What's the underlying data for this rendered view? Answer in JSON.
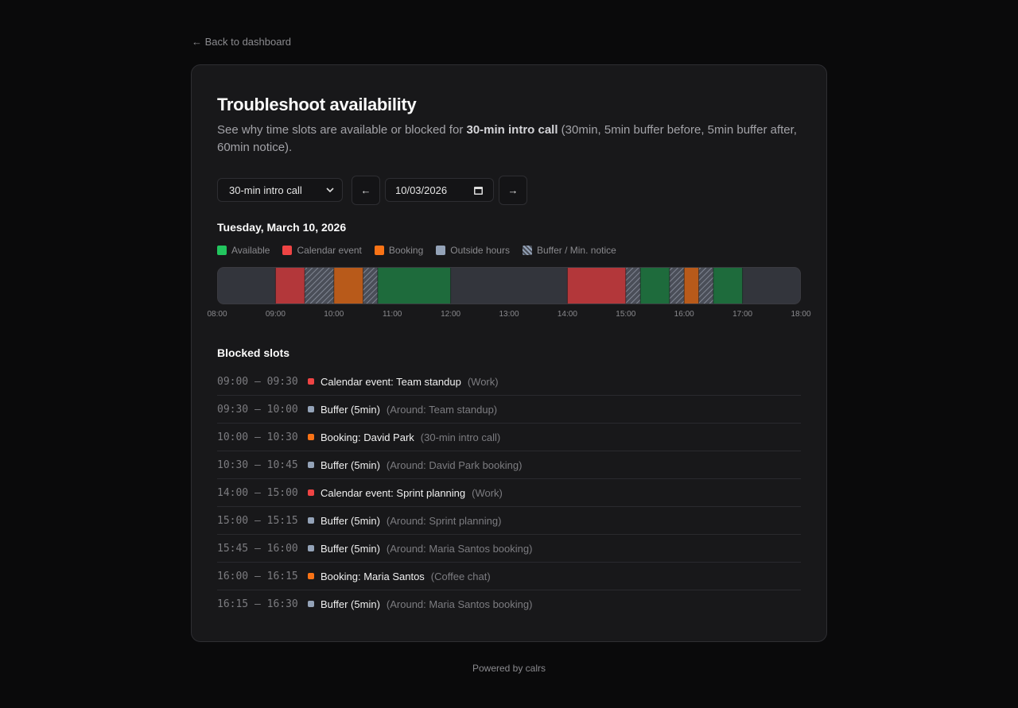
{
  "back_link": "← Back to dashboard",
  "title": "Troubleshoot availability",
  "description": {
    "before": "See why time slots are available or blocked for ",
    "bold": "30-min intro call",
    "after": " (30min, 5min buffer before, 5min buffer after, 60min notice)."
  },
  "controls": {
    "event_type": "30-min intro call",
    "prev": "←",
    "date": "10/03/2026",
    "next": "→"
  },
  "date_heading": "Tuesday, March 10, 2026",
  "legend": [
    {
      "label": "Available",
      "color": "#22c55e"
    },
    {
      "label": "Calendar event",
      "color": "#ef4444"
    },
    {
      "label": "Booking",
      "color": "#f97316"
    },
    {
      "label": "Outside hours",
      "color": "#94a3b8"
    },
    {
      "label": "Buffer / Min. notice",
      "color": "#94a3b8",
      "hatched": true
    }
  ],
  "timeline": {
    "range": [
      8,
      18
    ],
    "ticks": [
      "08:00",
      "09:00",
      "10:00",
      "11:00",
      "12:00",
      "13:00",
      "14:00",
      "15:00",
      "16:00",
      "17:00",
      "18:00"
    ],
    "segments": [
      {
        "start": 8,
        "end": 9,
        "color": "#33353c"
      },
      {
        "start": 9,
        "end": 9.5,
        "color": "#b3373a"
      },
      {
        "start": 9.5,
        "end": 10,
        "color": "#4a4e58",
        "hatched": true
      },
      {
        "start": 10,
        "end": 10.5,
        "color": "#b85a1a"
      },
      {
        "start": 10.5,
        "end": 10.75,
        "color": "#4a4e58",
        "hatched": true
      },
      {
        "start": 10.75,
        "end": 12,
        "color": "#1e6b3c"
      },
      {
        "start": 12,
        "end": 14,
        "color": "#33353c"
      },
      {
        "start": 14,
        "end": 15,
        "color": "#b3373a"
      },
      {
        "start": 15,
        "end": 15.25,
        "color": "#4a4e58",
        "hatched": true
      },
      {
        "start": 15.25,
        "end": 15.75,
        "color": "#1e6b3c"
      },
      {
        "start": 15.75,
        "end": 16,
        "color": "#4a4e58",
        "hatched": true
      },
      {
        "start": 16,
        "end": 16.25,
        "color": "#b85a1a"
      },
      {
        "start": 16.25,
        "end": 16.5,
        "color": "#4a4e58",
        "hatched": true
      },
      {
        "start": 16.5,
        "end": 17,
        "color": "#1e6b3c"
      },
      {
        "start": 17,
        "end": 18,
        "color": "#33353c"
      }
    ]
  },
  "blocked_heading": "Blocked slots",
  "slots": [
    {
      "time": "09:00 – 09:30",
      "color": "#ef4444",
      "title": "Calendar event: Team standup",
      "note": "(Work)"
    },
    {
      "time": "09:30 – 10:00",
      "color": "#94a3b8",
      "title": "Buffer (5min)",
      "note": "(Around: Team standup)"
    },
    {
      "time": "10:00 – 10:30",
      "color": "#f97316",
      "title": "Booking: David Park",
      "note": "(30-min intro call)"
    },
    {
      "time": "10:30 – 10:45",
      "color": "#94a3b8",
      "title": "Buffer (5min)",
      "note": "(Around: David Park booking)"
    },
    {
      "time": "14:00 – 15:00",
      "color": "#ef4444",
      "title": "Calendar event: Sprint planning",
      "note": "(Work)"
    },
    {
      "time": "15:00 – 15:15",
      "color": "#94a3b8",
      "title": "Buffer (5min)",
      "note": "(Around: Sprint planning)"
    },
    {
      "time": "15:45 – 16:00",
      "color": "#94a3b8",
      "title": "Buffer (5min)",
      "note": "(Around: Maria Santos booking)"
    },
    {
      "time": "16:00 – 16:15",
      "color": "#f97316",
      "title": "Booking: Maria Santos",
      "note": "(Coffee chat)"
    },
    {
      "time": "16:15 – 16:30",
      "color": "#94a3b8",
      "title": "Buffer (5min)",
      "note": "(Around: Maria Santos booking)"
    }
  ],
  "footer": "Powered by calrs"
}
